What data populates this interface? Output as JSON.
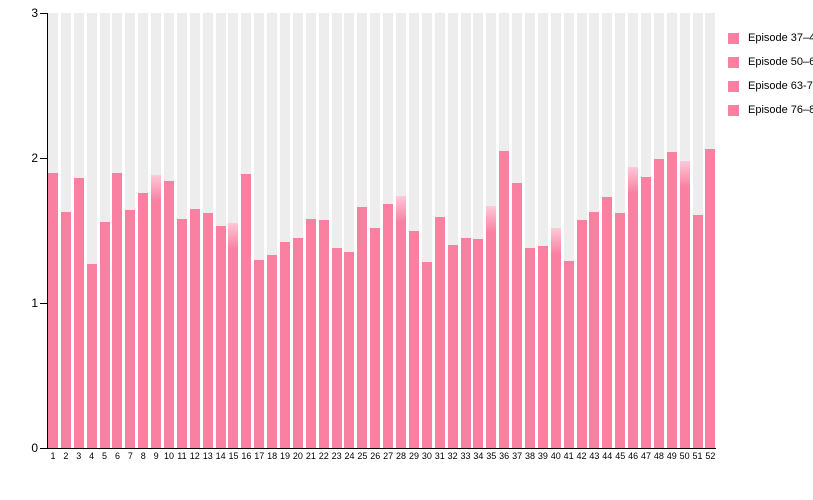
{
  "chart_data": {
    "type": "bar",
    "title": "",
    "xlabel": "",
    "ylabel": "",
    "ylim": [
      0,
      3
    ],
    "yticks": [
      0,
      1,
      2,
      3
    ],
    "grid": false,
    "background_columns": true,
    "categories": [
      "1",
      "2",
      "3",
      "4",
      "5",
      "6",
      "7",
      "8",
      "9",
      "10",
      "11",
      "12",
      "13",
      "14",
      "15",
      "16",
      "17",
      "18",
      "19",
      "20",
      "21",
      "22",
      "23",
      "24",
      "25",
      "26",
      "27",
      "28",
      "29",
      "30",
      "31",
      "32",
      "33",
      "34",
      "35",
      "36",
      "37",
      "38",
      "39",
      "40",
      "41",
      "42",
      "43",
      "44",
      "45",
      "46",
      "47",
      "48",
      "49",
      "50",
      "51",
      "52"
    ],
    "values": [
      1.9,
      1.63,
      1.86,
      1.27,
      1.56,
      1.9,
      1.64,
      1.76,
      1.88,
      1.84,
      1.58,
      1.65,
      1.62,
      1.53,
      1.55,
      1.89,
      1.3,
      1.33,
      1.42,
      1.45,
      1.58,
      1.57,
      1.38,
      1.35,
      1.66,
      1.52,
      1.68,
      1.74,
      1.5,
      1.28,
      1.59,
      1.4,
      1.45,
      1.44,
      1.67,
      2.05,
      1.83,
      1.38,
      1.39,
      1.52,
      1.29,
      1.57,
      1.63,
      1.73,
      1.62,
      1.94,
      1.87,
      1.99,
      2.04,
      1.98,
      1.61,
      2.06
    ],
    "soft_top_bars": [
      9,
      15,
      28,
      35,
      40,
      46,
      50
    ],
    "legend": {
      "position": "top-right",
      "entries": [
        {
          "label": "Episode 37–4",
          "color": "#fa80a2"
        },
        {
          "label": "Episode 50–6",
          "color": "#fa80a2"
        },
        {
          "label": "Episode 63-7",
          "color": "#fa80a2"
        },
        {
          "label": "Episode 76–8",
          "color": "#fa80a2"
        }
      ]
    },
    "colors": {
      "bar": "#fa80a2",
      "bar_soft_top": "#fdc9d8",
      "background_column": "#ededed",
      "axis": "#000000"
    }
  }
}
